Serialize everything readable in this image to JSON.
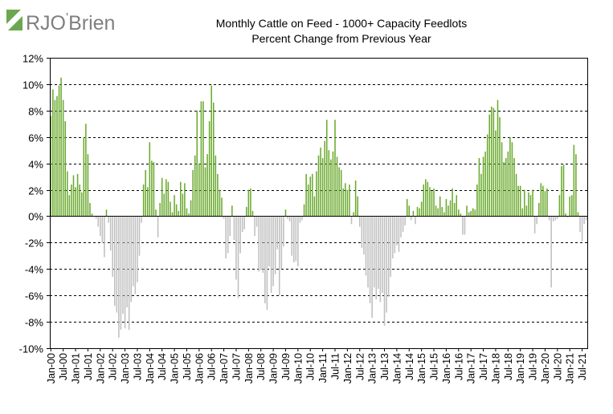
{
  "logo": {
    "text_main": "RJO",
    "text_apos": "'",
    "text_rest": "Brien",
    "icon": "rjo-logo-icon",
    "colors": {
      "green": "#6aa84f",
      "gray": "#7f7f7f"
    }
  },
  "chart_data": {
    "type": "bar",
    "title": "Monthly Cattle on Feed - 1000+ Capacity Feedlots",
    "subtitle": "Percent Change from Previous Year",
    "xlabel": "",
    "ylabel": "",
    "ylim": [
      -10,
      12
    ],
    "yticks": [
      -10,
      -8,
      -6,
      -4,
      -2,
      0,
      2,
      4,
      6,
      8,
      10,
      12
    ],
    "ytick_labels": [
      "-10%",
      "-8%",
      "-6%",
      "-4%",
      "-2%",
      "0%",
      "2%",
      "4%",
      "6%",
      "8%",
      "10%",
      "12%"
    ],
    "grid": "horizontal dashed",
    "legend": "none",
    "colors": {
      "positive": "#6aaa2e",
      "negative": "#bfbfbf"
    },
    "start": "Jan-00",
    "frequency": "monthly",
    "xtick_labels": [
      "Jan-00",
      "Jul-00",
      "Jan-01",
      "Jul-01",
      "Jan-02",
      "Jul-02",
      "Jan-03",
      "Jul-03",
      "Jan-04",
      "Jul-04",
      "Jan-05",
      "Jul-05",
      "Jan-06",
      "Jul-06",
      "Jan-07",
      "Jul-07",
      "Jan-08",
      "Jul-08",
      "Jan-09",
      "Jul-09",
      "Jan-10",
      "Jul-10",
      "Jan-11",
      "Jul-11",
      "Jan-12",
      "Jul-12",
      "Jan-13",
      "Jul-13",
      "Jan-14",
      "Jul-14",
      "Jan-15",
      "Jul-15",
      "Jan-16",
      "Jul-16",
      "Jan-17",
      "Jul-17",
      "Jan-18",
      "Jul-18",
      "Jan-19",
      "Jul-19",
      "Jan-20",
      "Jul-20",
      "Jan-21",
      "Jul-21"
    ],
    "values": [
      7.6,
      9.6,
      8.8,
      9.1,
      9.9,
      10.5,
      8.8,
      7.2,
      3.4,
      1.6,
      2.4,
      3.1,
      2.2,
      3.2,
      2.4,
      1.8,
      6.0,
      7.0,
      4.7,
      1.0,
      0.2,
      0.0,
      -0.2,
      -0.8,
      -1.5,
      -2.0,
      -3.1,
      0.5,
      -0.5,
      -2.6,
      -4.6,
      -6.8,
      -7.3,
      -9.2,
      -8.6,
      -7.4,
      -8.5,
      -6.9,
      -8.6,
      -6.5,
      -5.3,
      -5.9,
      -5.0,
      -3.0,
      -0.5,
      2.4,
      3.5,
      2.2,
      5.6,
      4.2,
      4.1,
      0.5,
      -1.6,
      1.0,
      2.9,
      1.7,
      2.8,
      2.6,
      1.1,
      0.3,
      1.6,
      0.9,
      0.4,
      2.6,
      1.7,
      2.5,
      0.6,
      0.2,
      1.2,
      3.5,
      4.6,
      8.0,
      4.0,
      8.7,
      8.7,
      3.7,
      4.7,
      7.2,
      9.9,
      8.6,
      4.6,
      3.2,
      2.0,
      1.4,
      -0.2,
      -3.2,
      -2.8,
      -1.5,
      0.8,
      -1.8,
      -4.8,
      -6.2,
      -2.8,
      -1.2,
      -1.0,
      0.7,
      2.0,
      2.1,
      0.4,
      -1.5,
      -0.8,
      -4.2,
      -4.1,
      -4.3,
      -6.6,
      -7.1,
      -3.8,
      -5.8,
      -5.3,
      -4.4,
      -2.5,
      -6.0,
      -4.0,
      -2.3,
      0.5,
      -0.2,
      -0.4,
      -3.0,
      -3.5,
      -3.4,
      -3.8,
      -0.5,
      -0.3,
      0.9,
      3.2,
      2.4,
      3.0,
      3.2,
      1.5,
      3.4,
      4.6,
      5.2,
      4.4,
      5.7,
      7.3,
      5.0,
      4.3,
      4.9,
      7.3,
      4.5,
      3.7,
      3.5,
      2.1,
      2.5,
      2.0,
      2.4,
      -0.6,
      0.3,
      2.7,
      1.5,
      -0.8,
      -2.4,
      -2.9,
      -4.5,
      -5.4,
      -6.6,
      -7.7,
      -5.4,
      -6.3,
      -5.5,
      -6.5,
      -5.8,
      -8.3,
      -7.3,
      -6.1,
      -4.6,
      -3.2,
      -2.8,
      -2.2,
      -2.7,
      -1.6,
      -1.2,
      -0.7,
      1.3,
      0.8,
      -0.3,
      0.4,
      -0.6,
      0.7,
      0.6,
      1.1,
      2.4,
      2.8,
      2.6,
      2.2,
      1.9,
      2.1,
      0.8,
      0.6,
      1.5,
      0.7,
      0.3,
      1.3,
      0.8,
      1.2,
      2.1,
      1.0,
      1.6,
      0.5,
      0.2,
      -1.4,
      -1.4,
      0.8,
      0.3,
      0.4,
      0.6,
      0.5,
      2.4,
      4.4,
      3.2,
      4.5,
      4.9,
      6.2,
      7.7,
      8.3,
      8.2,
      6.5,
      8.8,
      7.5,
      5.6,
      4.1,
      4.4,
      4.9,
      6.0,
      5.6,
      4.4,
      3.2,
      2.3,
      2.3,
      0.6,
      2.0,
      0.8,
      1.8,
      1.6,
      2.0,
      -1.3,
      -0.6,
      1.0,
      2.5,
      2.3,
      1.9,
      2.1,
      -0.3,
      -5.4,
      -0.4,
      -0.3,
      -0.2,
      1.6,
      3.8,
      3.9,
      0.2,
      -0.1,
      1.5,
      1.6,
      5.4,
      4.7,
      0.3,
      -1.2,
      -1.9,
      -0.6,
      -0.3
    ]
  }
}
